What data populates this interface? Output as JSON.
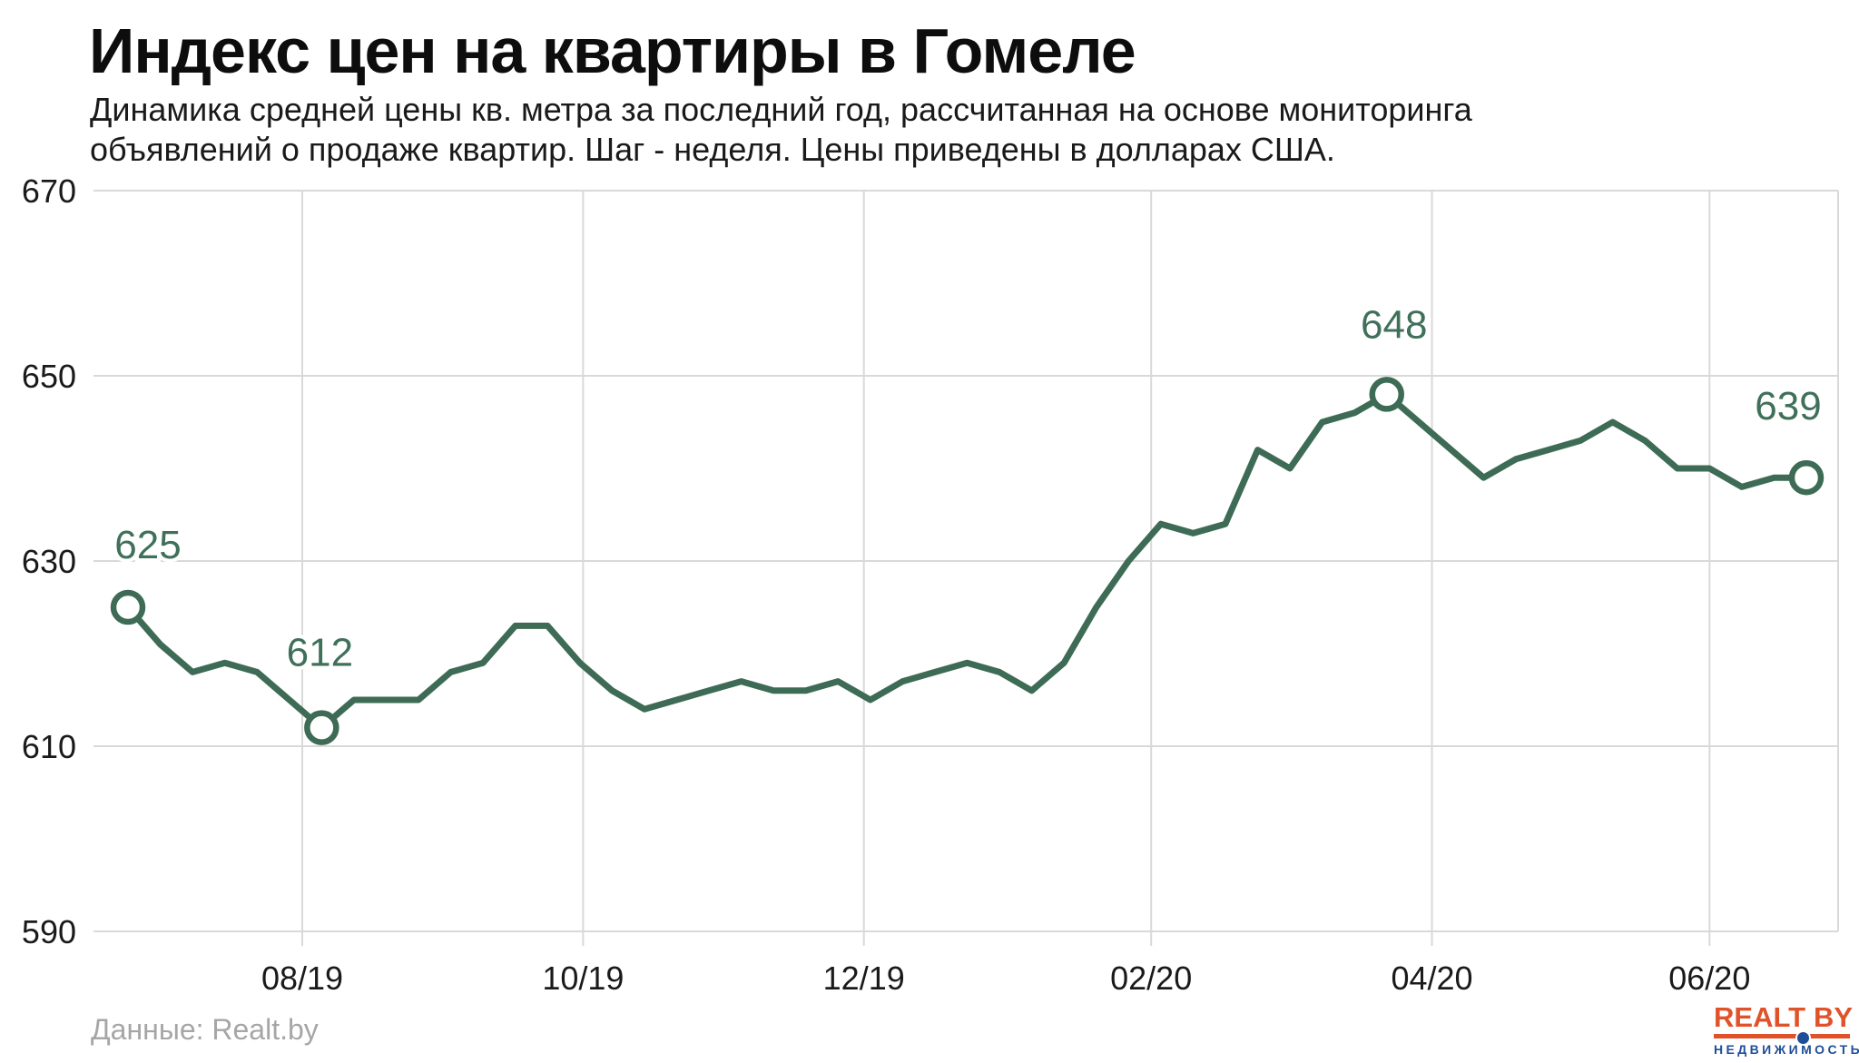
{
  "header": {
    "title": "Индекс цен на квартиры в Гомеле",
    "subtitle_line1": "Динамика средней цены кв. метра за последний год, рассчитанная на основе мониторинга",
    "subtitle_line2": "объявлений о продаже квартир. Шаг - неделя. Цены приведены в долларах США."
  },
  "footer": {
    "source": "Данные: Realt.by"
  },
  "logo": {
    "name": "REALT",
    "suffix": "BY",
    "tagline": "НЕДВИЖИМОСТЬ",
    "orange": "#e0532a",
    "blue": "#1f4e99"
  },
  "chart_data": {
    "type": "line",
    "title": "Индекс цен на квартиры в Гомеле",
    "x_unit": "week",
    "xlabel": "",
    "ylabel": "",
    "ylim": [
      590,
      670
    ],
    "yticks": [
      590,
      610,
      630,
      650,
      670
    ],
    "grid": true,
    "line_color": "#3e6b55",
    "label_color": "#3f7059",
    "grid_color": "#d9d9d9",
    "axis_text_color": "#1a1a1a",
    "marker": "open-circle",
    "values": [
      625,
      621,
      618,
      619,
      618,
      615,
      612,
      615,
      615,
      615,
      618,
      619,
      623,
      623,
      619,
      616,
      614,
      615,
      616,
      617,
      616,
      616,
      617,
      615,
      617,
      618,
      619,
      618,
      616,
      619,
      625,
      630,
      634,
      633,
      634,
      642,
      640,
      645,
      646,
      648,
      645,
      642,
      639,
      641,
      642,
      643,
      645,
      643,
      640,
      640,
      638,
      639,
      639
    ],
    "xticks": [
      {
        "label": "08/19",
        "week": 5.4
      },
      {
        "label": "10/19",
        "week": 14.1
      },
      {
        "label": "12/19",
        "week": 22.8
      },
      {
        "label": "02/20",
        "week": 31.7
      },
      {
        "label": "04/20",
        "week": 40.4
      },
      {
        "label": "06/20",
        "week": 49.0
      }
    ],
    "annotations": [
      {
        "week": 0,
        "value": 625,
        "label": "625"
      },
      {
        "week": 6,
        "value": 612,
        "label": "612"
      },
      {
        "week": 39,
        "value": 648,
        "label": "648"
      },
      {
        "week": 52,
        "value": 639,
        "label": "639"
      }
    ]
  }
}
